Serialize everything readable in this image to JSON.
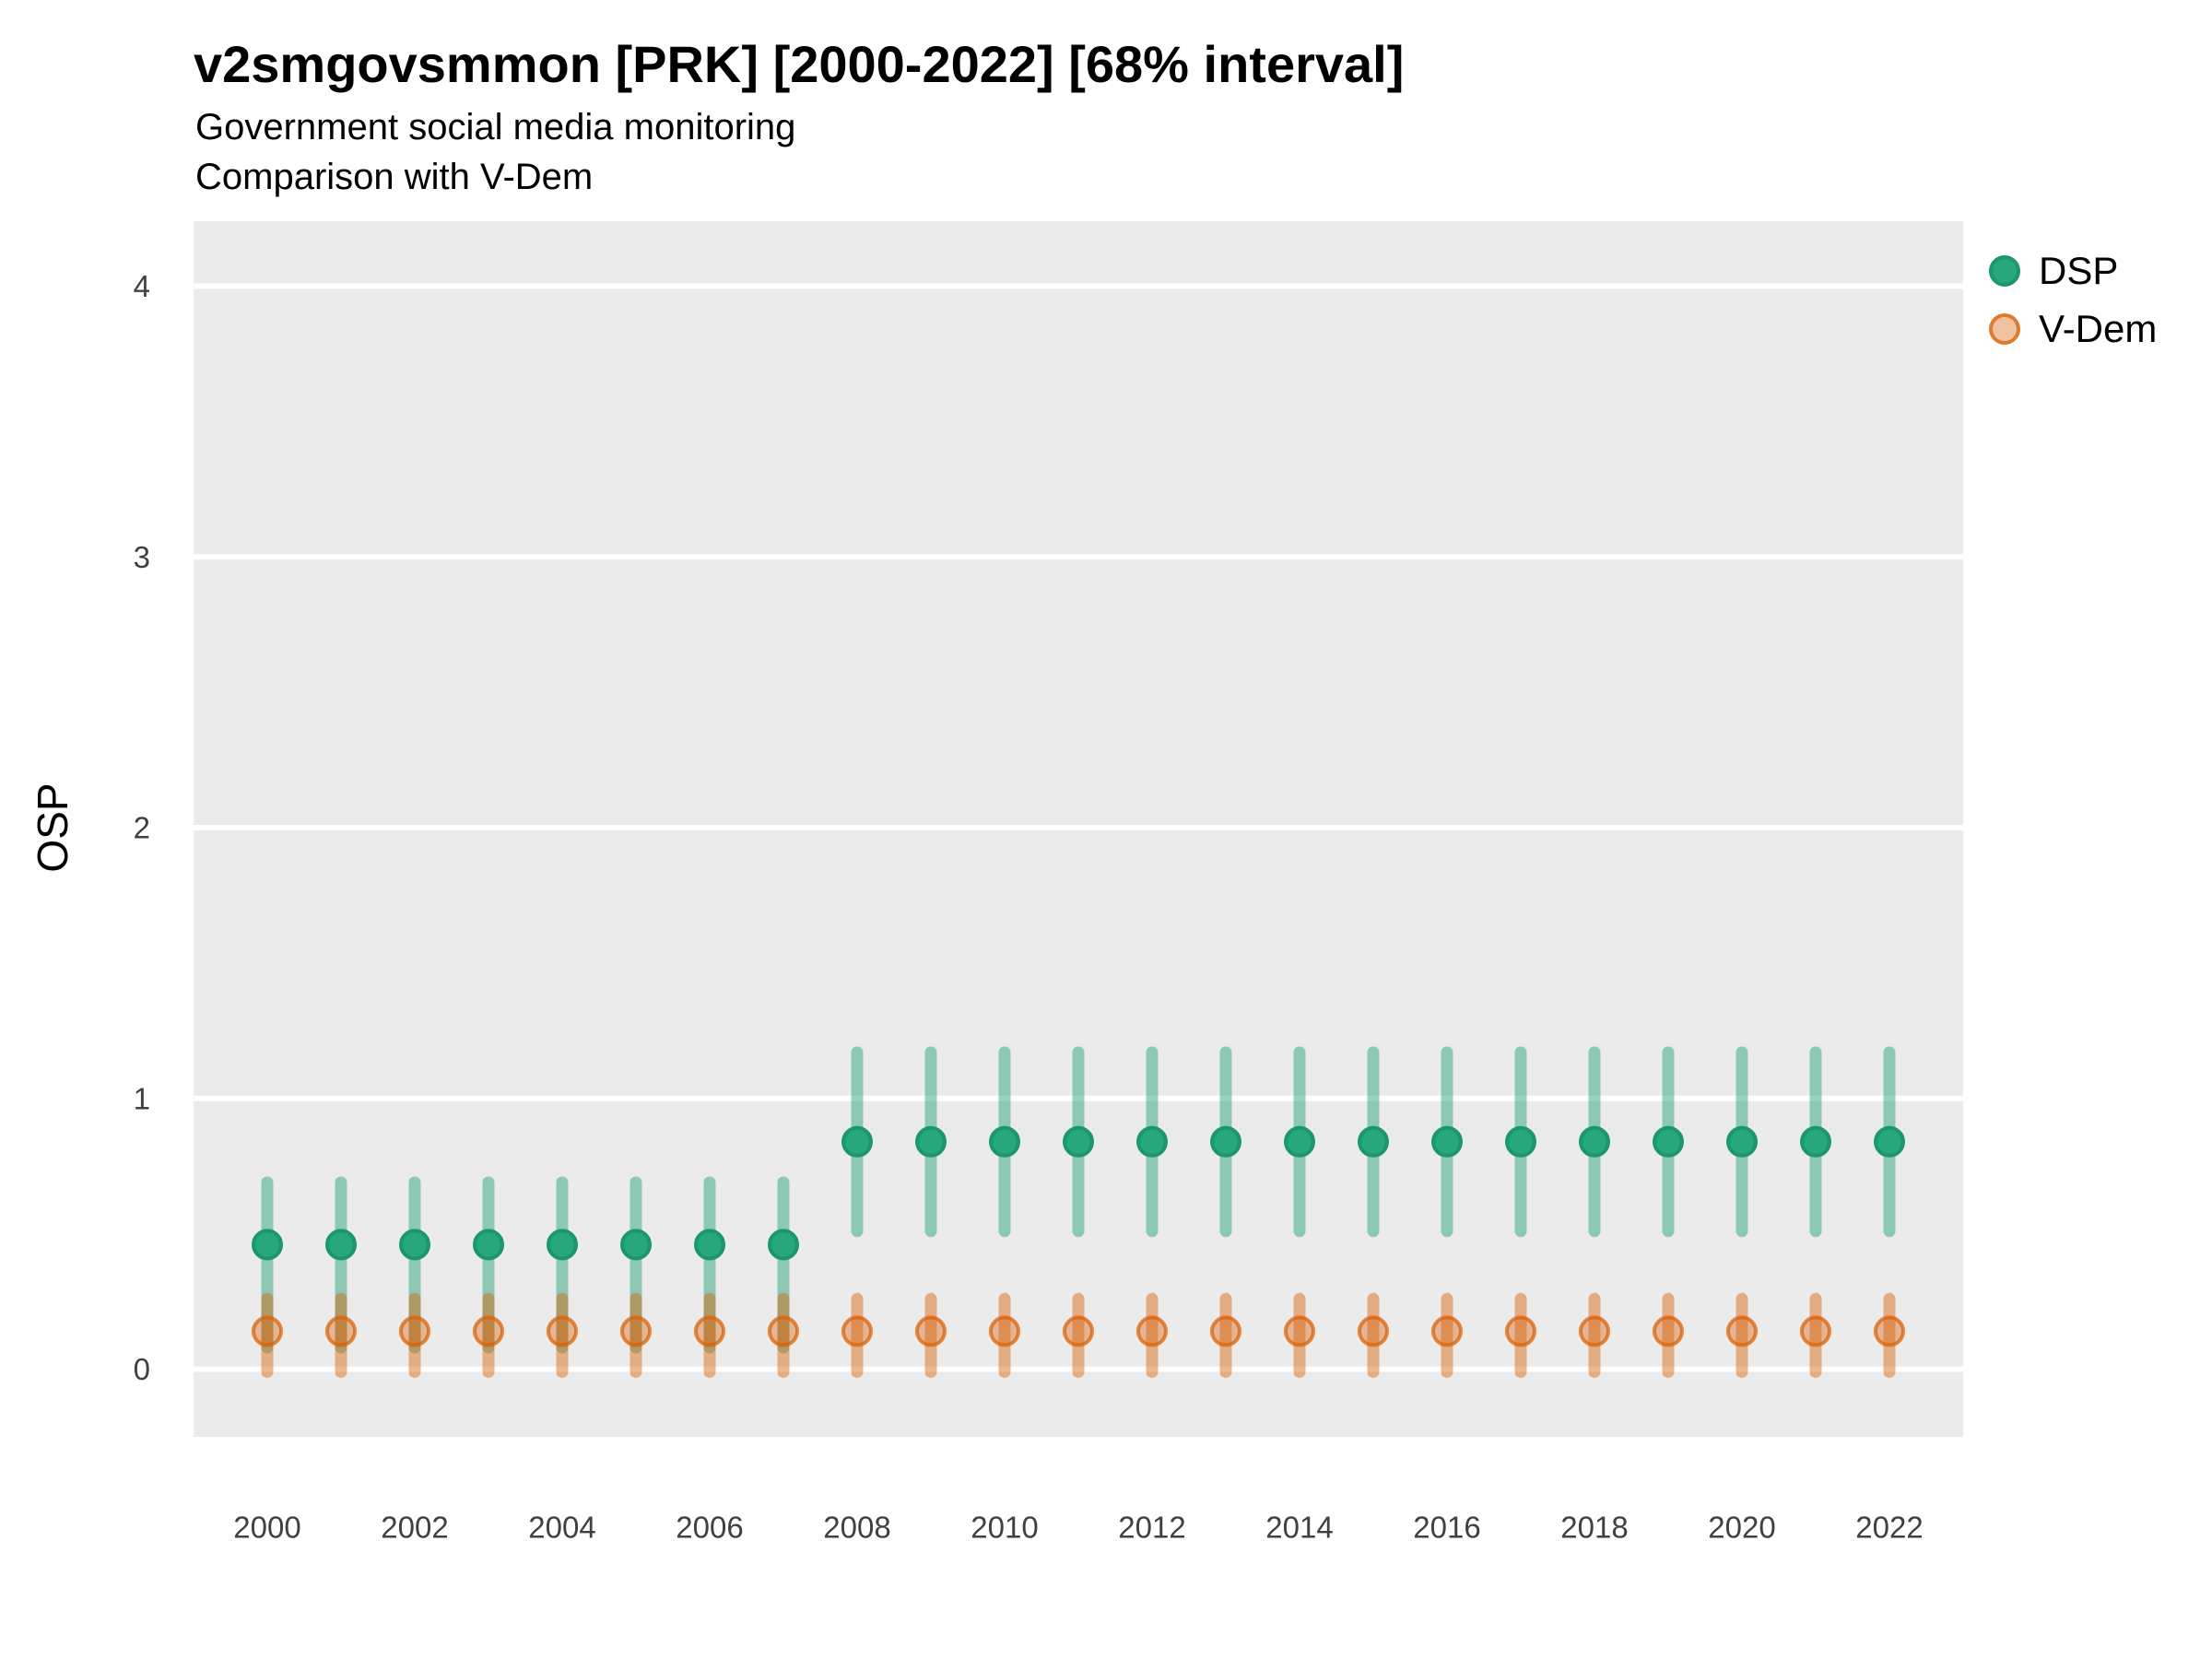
{
  "title": "v2smgovsmmon [PRK] [2000-2022] [68% interval]",
  "subtitle_line1": "Government social media monitoring",
  "subtitle_line2": "Comparison with V-Dem",
  "axes": {
    "y_label": "OSP",
    "y_ticks": [
      "0",
      "1",
      "2",
      "3",
      "4"
    ],
    "x_ticks": [
      "2000",
      "2002",
      "2004",
      "2006",
      "2008",
      "2010",
      "2012",
      "2014",
      "2016",
      "2018",
      "2020",
      "2022"
    ]
  },
  "legend": {
    "items": [
      {
        "label": "DSP"
      },
      {
        "label": "V-Dem"
      }
    ]
  },
  "colors": {
    "panel_background": "#ebebeb",
    "gridline": "#ffffff",
    "tick_label": "#404040",
    "dsp_point_fill": "#28a67c",
    "dsp_point_stroke": "#1a986c",
    "dsp_interval": "rgba(27,158,119,0.45)",
    "vdem_point_fill": "rgba(217,95,2,0.38)",
    "vdem_point_stroke": "rgba(217,95,2,0.72)",
    "vdem_interval": "rgba(217,95,2,0.45)"
  },
  "chart_data": {
    "type": "scatter",
    "title": "v2smgovsmmon [PRK] [2000-2022] [68% interval]",
    "subtitle": "Government social media monitoring — Comparison with V-Dem",
    "interval_level": "68%",
    "xlabel": "",
    "ylabel": "OSP",
    "grid": "horizontal white gridlines on grey panel",
    "legend_position": "right-top",
    "xlim": [
      1999,
      2023
    ],
    "ylim": [
      -0.25,
      4.24
    ],
    "yticks": [
      0,
      1,
      2,
      3,
      4
    ],
    "xticks": [
      2000,
      2002,
      2004,
      2006,
      2008,
      2010,
      2012,
      2014,
      2016,
      2018,
      2020,
      2022
    ],
    "x": [
      2000,
      2001,
      2002,
      2003,
      2004,
      2005,
      2006,
      2007,
      2008,
      2009,
      2010,
      2011,
      2012,
      2013,
      2014,
      2015,
      2016,
      2017,
      2018,
      2019,
      2020,
      2021,
      2022
    ],
    "series": [
      {
        "name": "DSP",
        "est": [
          0.46,
          0.46,
          0.46,
          0.46,
          0.46,
          0.46,
          0.46,
          0.46,
          0.84,
          0.84,
          0.84,
          0.84,
          0.84,
          0.84,
          0.84,
          0.84,
          0.84,
          0.84,
          0.84,
          0.84,
          0.84,
          0.84,
          0.84
        ],
        "lo": [
          0.08,
          0.08,
          0.08,
          0.08,
          0.08,
          0.08,
          0.08,
          0.08,
          0.51,
          0.51,
          0.51,
          0.51,
          0.51,
          0.51,
          0.51,
          0.51,
          0.51,
          0.51,
          0.51,
          0.51,
          0.51,
          0.51,
          0.51
        ],
        "hi": [
          0.69,
          0.69,
          0.69,
          0.69,
          0.69,
          0.69,
          0.69,
          0.69,
          1.17,
          1.17,
          1.17,
          1.17,
          1.17,
          1.17,
          1.17,
          1.17,
          1.17,
          1.17,
          1.17,
          1.17,
          1.17,
          1.17,
          1.17
        ]
      },
      {
        "name": "V-Dem",
        "est": [
          0.14,
          0.14,
          0.14,
          0.14,
          0.14,
          0.14,
          0.14,
          0.14,
          0.14,
          0.14,
          0.14,
          0.14,
          0.14,
          0.14,
          0.14,
          0.14,
          0.14,
          0.14,
          0.14,
          0.14,
          0.14,
          0.14,
          0.14
        ],
        "lo": [
          -0.01,
          -0.01,
          -0.01,
          -0.01,
          -0.01,
          -0.01,
          -0.01,
          -0.01,
          -0.01,
          -0.01,
          -0.01,
          -0.01,
          -0.01,
          -0.01,
          -0.01,
          -0.01,
          -0.01,
          -0.01,
          -0.01,
          -0.01,
          -0.01,
          -0.01,
          -0.01
        ],
        "hi": [
          0.26,
          0.26,
          0.26,
          0.26,
          0.26,
          0.26,
          0.26,
          0.26,
          0.26,
          0.26,
          0.26,
          0.26,
          0.26,
          0.26,
          0.26,
          0.26,
          0.26,
          0.26,
          0.26,
          0.26,
          0.26,
          0.26,
          0.26
        ]
      }
    ]
  }
}
